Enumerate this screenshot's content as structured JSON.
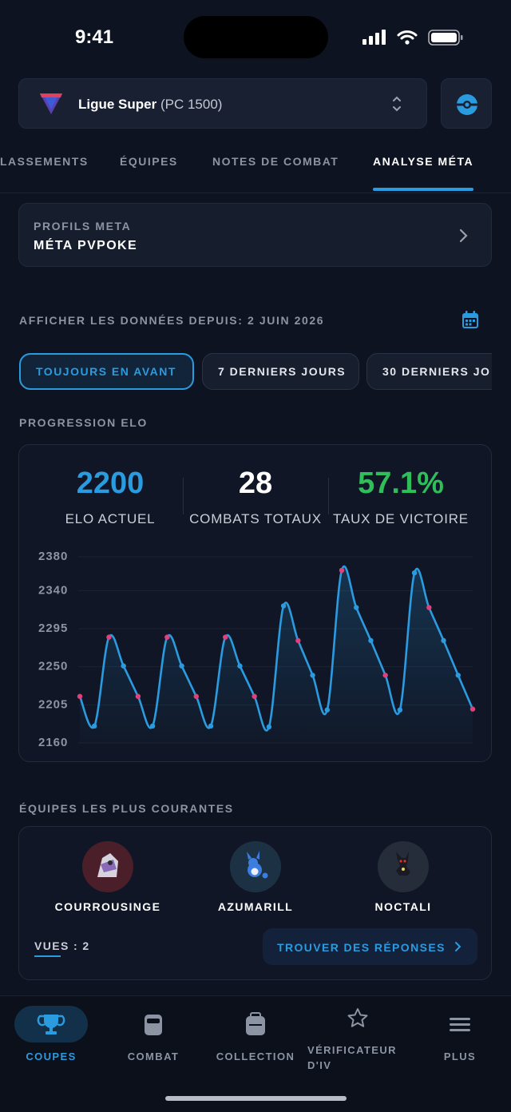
{
  "status_bar": {
    "time": "9:41"
  },
  "league_selector": {
    "name": "Ligue Super",
    "detail": "(PC 1500)"
  },
  "tabs": {
    "items": [
      "LASSEMENTS",
      "ÉQUIPES",
      "NOTES DE COMBAT",
      "ANALYSE MÉTA"
    ],
    "active": 3
  },
  "meta_profile": {
    "label": "PROFILS META",
    "value": "MÉTA PVPOKE"
  },
  "date_filter": {
    "label": "AFFICHER LES DONNÉES DEPUIS: 2 JUIN 2026"
  },
  "range_chips": {
    "items": [
      "TOUJOURS EN AVANT",
      "7 DERNIERS JOURS",
      "30 DERNIERS JO"
    ],
    "active": 0
  },
  "elo_section": {
    "title": "PROGRESSION ELO",
    "stats": [
      {
        "value": "2200",
        "label": "ELO ACTUEL",
        "color": "#2b9be0"
      },
      {
        "value": "28",
        "label": "COMBATS TOTAUX",
        "color": "#ffffff"
      },
      {
        "value": "57.1%",
        "label": "TAUX DE VICTOIRE",
        "color": "#2fbf5a"
      }
    ]
  },
  "chart_data": {
    "type": "line",
    "values": [
      2215,
      2180,
      2285,
      2251,
      2215,
      2180,
      2285,
      2251,
      2215,
      2180,
      2285,
      2251,
      2215,
      2179,
      2322,
      2281,
      2240,
      2199,
      2364,
      2320,
      2281,
      2240,
      2199,
      2361,
      2320,
      2281,
      2240,
      2200
    ],
    "color": "#2b9be0",
    "marker_colors": [
      "#e2407a",
      "#2b9be0",
      "#e2407a",
      "#2b9be0",
      "#e2407a",
      "#2b9be0",
      "#e2407a",
      "#2b9be0",
      "#e2407a",
      "#2b9be0",
      "#e2407a",
      "#2b9be0",
      "#e2407a",
      "#2b9be0",
      "#2b9be0",
      "#e2407a",
      "#2b9be0",
      "#2b9be0",
      "#e2407a",
      "#2b9be0",
      "#2b9be0",
      "#e2407a",
      "#2b9be0",
      "#2b9be0",
      "#e2407a",
      "#2b9be0",
      "#2b9be0",
      "#e2407a"
    ],
    "ylim": [
      2160,
      2380
    ],
    "yticks": [
      2160,
      2205,
      2250,
      2295,
      2340,
      2380
    ],
    "grid": true
  },
  "teams_section": {
    "title": "ÉQUIPES LES PLUS COURANTES",
    "members": [
      "COURROUSINGE",
      "AZUMARILL",
      "NOCTALI"
    ],
    "views": "VUES : 2",
    "action": "TROUVER DES RÉPONSES"
  },
  "bottom_nav": {
    "items": [
      "COUPES",
      "COMBAT",
      "COLLECTION",
      "VÉRIFICATEUR D'IV",
      "PLUS"
    ],
    "active": 0
  }
}
